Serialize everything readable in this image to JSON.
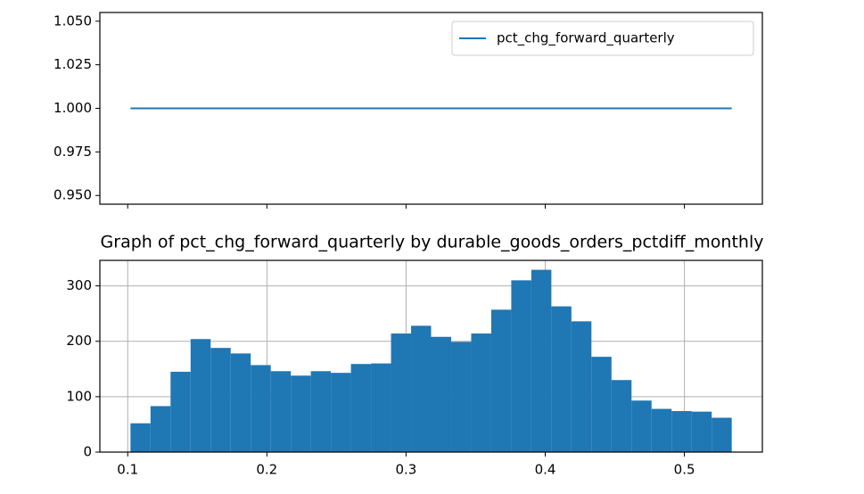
{
  "chart_data": [
    {
      "type": "line",
      "x": [
        0.102,
        0.534
      ],
      "series": [
        {
          "name": "pct_chg_forward_quarterly",
          "color": "#1f77b4",
          "values": [
            1,
            1
          ]
        }
      ],
      "xlim": [
        0.08,
        0.556
      ],
      "xticks": [
        0.1,
        0.2,
        0.3,
        0.4,
        0.5
      ],
      "xticklabels": false,
      "ylim": [
        0.945,
        1.055
      ],
      "yticks": [
        {
          "value": 0.95,
          "label": "0.950"
        },
        {
          "value": 0.975,
          "label": "0.975"
        },
        {
          "value": 1.0,
          "label": "1.000"
        },
        {
          "value": 1.025,
          "label": "1.025"
        },
        {
          "value": 1.05,
          "label": "1.050"
        }
      ],
      "legend": "upper right",
      "grid": false
    },
    {
      "type": "histogram",
      "title": "Graph of pct_chg_forward_quarterly by durable_goods_orders_pctdiff_monthly",
      "bins": [
        0.102,
        0.1164,
        0.1308,
        0.1452,
        0.1596,
        0.174,
        0.1884,
        0.2028,
        0.2172,
        0.2316,
        0.246,
        0.2604,
        0.2748,
        0.2892,
        0.3036,
        0.318,
        0.3324,
        0.3468,
        0.3612,
        0.3756,
        0.39,
        0.4044,
        0.4188,
        0.4332,
        0.4476,
        0.462,
        0.4764,
        0.4908,
        0.5052,
        0.5196,
        0.534
      ],
      "values": [
        52,
        83,
        145,
        204,
        188,
        178,
        157,
        146,
        138,
        146,
        143,
        159,
        160,
        214,
        228,
        208,
        199,
        214,
        257,
        310,
        329,
        263,
        236,
        172,
        130,
        93,
        78,
        74,
        73,
        62
      ],
      "color": "#1f77b4",
      "xlim": [
        0.08,
        0.556
      ],
      "xticks": [
        0.1,
        0.2,
        0.3,
        0.4,
        0.5
      ],
      "ylim": [
        0,
        346
      ],
      "yticks": [
        0,
        100,
        200,
        300
      ],
      "grid": true
    }
  ]
}
